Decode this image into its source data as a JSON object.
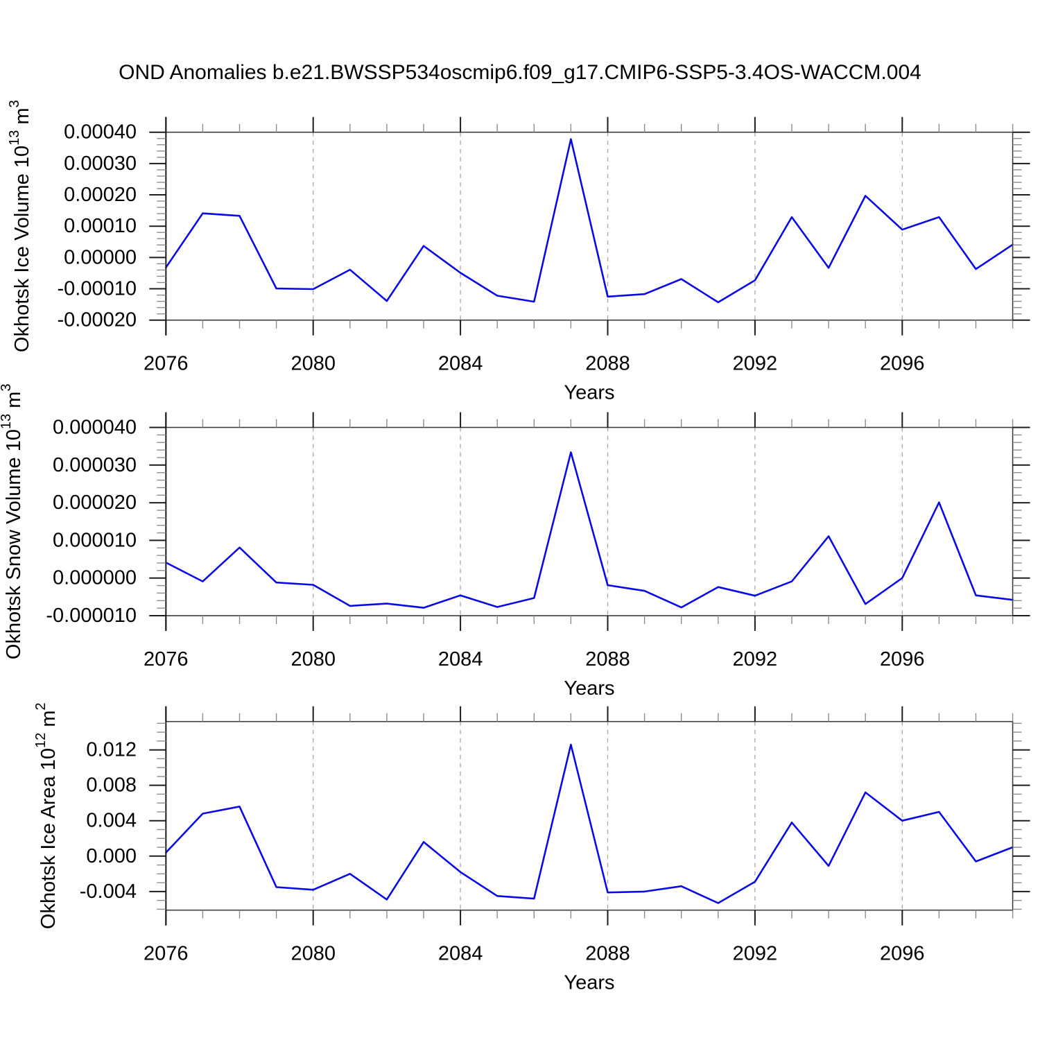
{
  "title": "OND Anomalies b.e21.BWSSP534oscmip6.f09_g17.CMIP6-SSP5-3.4OS-WACCM.004",
  "colors": {
    "line": "#0a0ae6",
    "frame": "#3c3c3c",
    "major_tick": "#1c1c1c",
    "minor_tick": "#8c8c8c",
    "grid": "#a6a6a6",
    "text": "#000000"
  },
  "chart_data": [
    {
      "id": "ice-volume",
      "type": "line",
      "ylabel": "Okhotsk Ice Volume 10^13 m^3",
      "ylabel_segments": [
        {
          "t": "Okhotsk Ice Volume 10"
        },
        {
          "t": "13",
          "sup": true
        },
        {
          "t": " m"
        },
        {
          "t": "3",
          "sup": true
        }
      ],
      "xlabel": "Years",
      "x": [
        2076,
        2077,
        2078,
        2079,
        2080,
        2081,
        2082,
        2083,
        2084,
        2085,
        2086,
        2087,
        2088,
        2089,
        2090,
        2091,
        2092,
        2093,
        2094,
        2095,
        2096,
        2097,
        2098,
        2099
      ],
      "values": [
        -3.2e-05,
        0.000141,
        0.000133,
        -9.9e-05,
        -0.000101,
        -3.9e-05,
        -0.000139,
        3.7e-05,
        -4.9e-05,
        -0.000122,
        -0.000141,
        0.000378,
        -0.000125,
        -0.000117,
        -6.9e-05,
        -0.000143,
        -7.3e-05,
        0.000129,
        -3.3e-05,
        0.000197,
        8.9e-05,
        0.000129,
        -3.7e-05,
        4.1e-05
      ],
      "xlim": [
        2076,
        2099
      ],
      "ylim": [
        -0.0002,
        0.0004
      ],
      "yticks": [
        {
          "v": 0.0004,
          "label": "0.00040"
        },
        {
          "v": 0.0003,
          "label": "0.00030"
        },
        {
          "v": 0.0002,
          "label": "0.00020"
        },
        {
          "v": 0.0001,
          "label": "0.00010"
        },
        {
          "v": 0.0,
          "label": "0.00000"
        },
        {
          "v": -0.0001,
          "label": "-0.00010"
        },
        {
          "v": -0.0002,
          "label": "-0.00020"
        }
      ],
      "yminor_step": 2e-05,
      "xticks": [
        {
          "v": 2076,
          "label": "2076"
        },
        {
          "v": 2080,
          "label": "2080"
        },
        {
          "v": 2084,
          "label": "2084"
        },
        {
          "v": 2088,
          "label": "2088"
        },
        {
          "v": 2092,
          "label": "2092"
        },
        {
          "v": 2096,
          "label": "2096"
        }
      ],
      "xminor_step": 1,
      "xgrid": [
        2080,
        2084,
        2088,
        2092,
        2096
      ]
    },
    {
      "id": "snow-volume",
      "type": "line",
      "ylabel": "Okhotsk Snow Volume 10^13 m^3",
      "ylabel_segments": [
        {
          "t": "Okhotsk Snow Volume 10"
        },
        {
          "t": "13",
          "sup": true
        },
        {
          "t": " m"
        },
        {
          "t": "3",
          "sup": true
        }
      ],
      "xlabel": "Years",
      "x": [
        2076,
        2077,
        2078,
        2079,
        2080,
        2081,
        2082,
        2083,
        2084,
        2085,
        2086,
        2087,
        2088,
        2089,
        2090,
        2091,
        2092,
        2093,
        2094,
        2095,
        2096,
        2097,
        2098,
        2099
      ],
      "values": [
        4.1e-06,
        -9e-07,
        8.1e-06,
        -1.2e-06,
        -1.8e-06,
        -7.4e-06,
        -6.8e-06,
        -7.9e-06,
        -4.6e-06,
        -7.7e-06,
        -5.3e-06,
        3.34e-05,
        -1.9e-06,
        -3.4e-06,
        -7.8e-06,
        -2.4e-06,
        -4.7e-06,
        -9e-07,
        1.11e-05,
        -6.9e-06,
        0.0,
        2.01e-05,
        -4.6e-06,
        -5.8e-06
      ],
      "xlim": [
        2076,
        2099
      ],
      "ylim": [
        -1e-05,
        4e-05
      ],
      "yticks": [
        {
          "v": 4e-05,
          "label": "0.000040"
        },
        {
          "v": 3e-05,
          "label": "0.000030"
        },
        {
          "v": 2e-05,
          "label": "0.000020"
        },
        {
          "v": 1e-05,
          "label": "0.000010"
        },
        {
          "v": 0.0,
          "label": "0.000000"
        },
        {
          "v": -1e-05,
          "label": "-0.000010"
        }
      ],
      "yminor_step": 2e-06,
      "xticks": [
        {
          "v": 2076,
          "label": "2076"
        },
        {
          "v": 2080,
          "label": "2080"
        },
        {
          "v": 2084,
          "label": "2084"
        },
        {
          "v": 2088,
          "label": "2088"
        },
        {
          "v": 2092,
          "label": "2092"
        },
        {
          "v": 2096,
          "label": "2096"
        }
      ],
      "xminor_step": 1,
      "xgrid": [
        2080,
        2084,
        2088,
        2092,
        2096
      ]
    },
    {
      "id": "ice-area",
      "type": "line",
      "ylabel": "Okhotsk Ice Area 10^12 m^2",
      "ylabel_segments": [
        {
          "t": "Okhotsk Ice Area 10"
        },
        {
          "t": "12",
          "sup": true
        },
        {
          "t": " m"
        },
        {
          "t": "2",
          "sup": true
        }
      ],
      "xlabel": "Years",
      "x": [
        2076,
        2077,
        2078,
        2079,
        2080,
        2081,
        2082,
        2083,
        2084,
        2085,
        2086,
        2087,
        2088,
        2089,
        2090,
        2091,
        2092,
        2093,
        2094,
        2095,
        2096,
        2097,
        2098,
        2099
      ],
      "values": [
        0.0004,
        0.0048,
        0.0056,
        -0.0035,
        -0.0038,
        -0.002,
        -0.0049,
        0.0016,
        -0.0018,
        -0.0045,
        -0.0048,
        0.0126,
        -0.0041,
        -0.004,
        -0.0034,
        -0.0053,
        -0.0029,
        0.0038,
        -0.0011,
        0.0072,
        0.004,
        0.005,
        -0.0006,
        0.001
      ],
      "xlim": [
        2076,
        2099
      ],
      "ylim": [
        -0.0061,
        0.0152
      ],
      "yticks": [
        {
          "v": 0.012,
          "label": "0.012"
        },
        {
          "v": 0.008,
          "label": "0.008"
        },
        {
          "v": 0.004,
          "label": "0.004"
        },
        {
          "v": 0.0,
          "label": "0.000"
        },
        {
          "v": -0.004,
          "label": "-0.004"
        }
      ],
      "yminor_step": 0.001,
      "xticks": [
        {
          "v": 2076,
          "label": "2076"
        },
        {
          "v": 2080,
          "label": "2080"
        },
        {
          "v": 2084,
          "label": "2084"
        },
        {
          "v": 2088,
          "label": "2088"
        },
        {
          "v": 2092,
          "label": "2092"
        },
        {
          "v": 2096,
          "label": "2096"
        }
      ],
      "xminor_step": 1,
      "xgrid": [
        2080,
        2084,
        2088,
        2092,
        2096
      ]
    }
  ]
}
